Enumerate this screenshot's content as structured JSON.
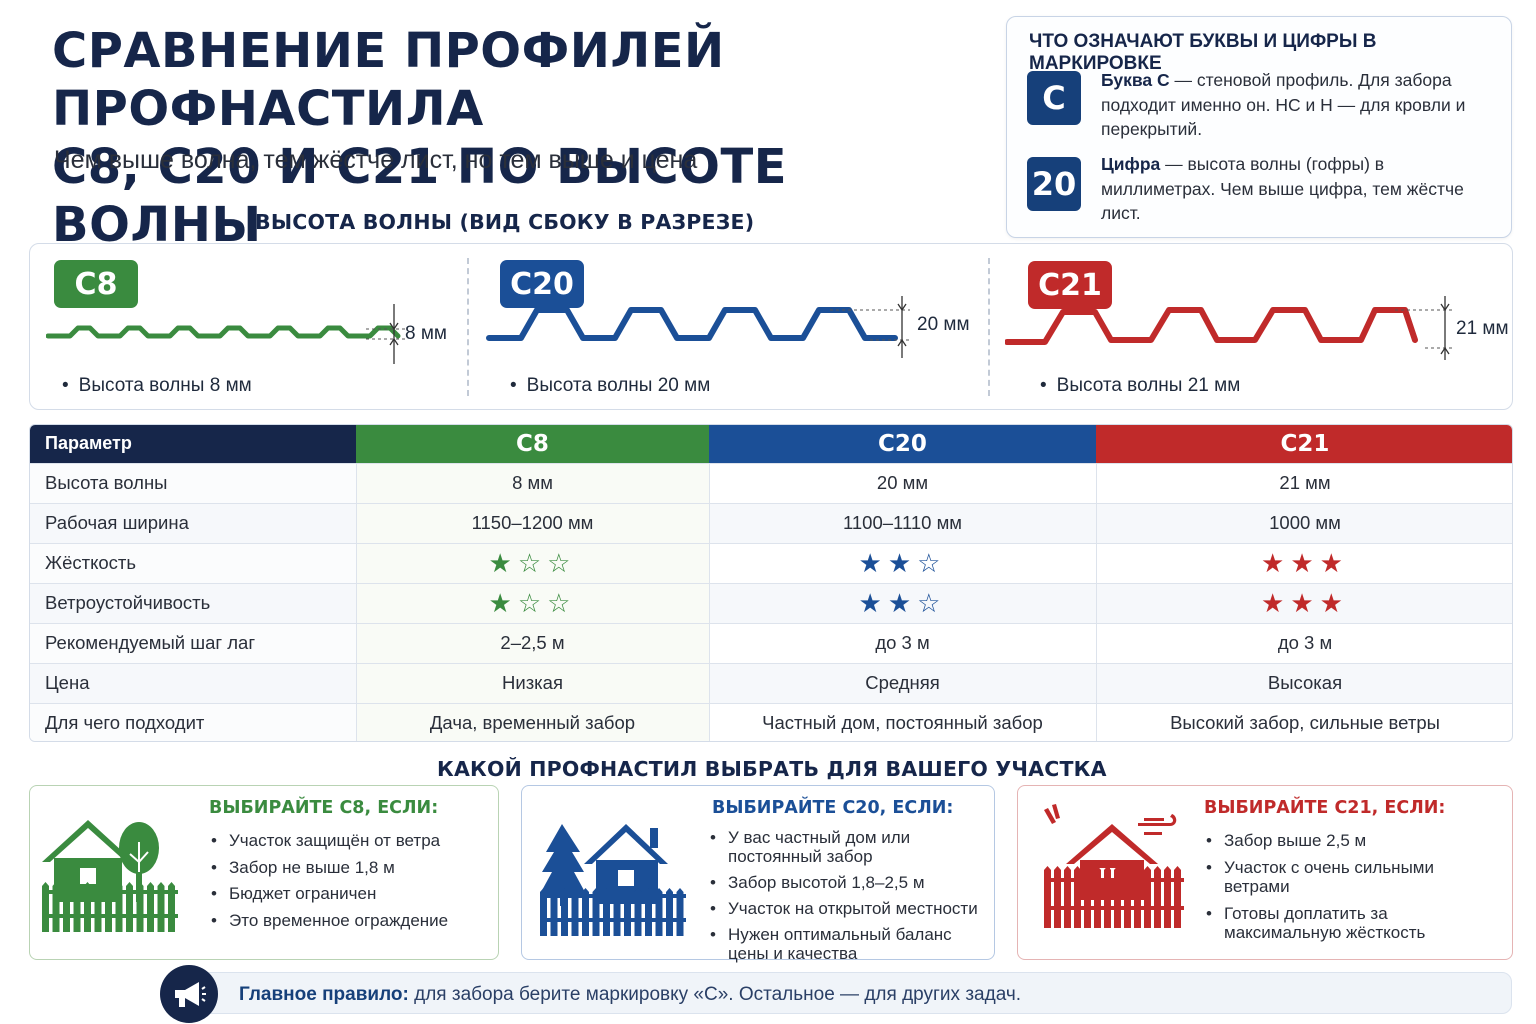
{
  "header": {
    "title_line1": "СРАВНЕНИЕ ПРОФИЛЕЙ ПРОФНАСТИЛА",
    "title_line2": "С8, С20 И С21 ПО ВЫСОТЕ ВОЛНЫ",
    "subtitle": "Чем выше волна, тем жёстче лист, но тем выше и цена"
  },
  "legend": {
    "title": "ЧТО ОЗНАЧАЮТ БУКВЫ И ЦИФРЫ В МАРКИРОВКЕ",
    "items": [
      {
        "badge": "С",
        "bold": "Буква С",
        "text": " — стеновой профиль. Для забора подходит именно он. НС и Н — для кровли и перекрытий."
      },
      {
        "badge": "20",
        "bold": "Цифра",
        "text": " — высота волны (гофры) в миллиметрах. Чем выше цифра, тем жёстче лист."
      }
    ]
  },
  "waves": {
    "heading": "ВЫСОТА ВОЛНЫ (ВИД СБОКУ В РАЗРЕЗЕ)",
    "profiles": [
      {
        "name": "С8",
        "height_label": "8 мм",
        "caption": "Высота волны 8 мм",
        "color": "#3a8b3f"
      },
      {
        "name": "С20",
        "height_label": "20 мм",
        "caption": "Высота волны 20 мм",
        "color": "#1b4f97"
      },
      {
        "name": "С21",
        "height_label": "21 мм",
        "caption": "Высота волны 21 мм",
        "color": "#c02a2a"
      }
    ]
  },
  "table": {
    "headers": [
      "Параметр",
      "С8",
      "С20",
      "С21"
    ],
    "rows": [
      {
        "param": "Высота волны",
        "c8": "8 мм",
        "c20": "20 мм",
        "c21": "21 мм"
      },
      {
        "param": "Рабочая ширина",
        "c8": "1150–1200 мм",
        "c20": "1100–1110 мм",
        "c21": "1000 мм"
      },
      {
        "param": "Жёсткость",
        "c8": "★☆☆",
        "c20": "★★☆",
        "c21": "★★★"
      },
      {
        "param": "Ветроустойчивость",
        "c8": "★☆☆",
        "c20": "★★☆",
        "c21": "★★★"
      },
      {
        "param": "Рекомендуемый шаг лаг",
        "c8": "2–2,5 м",
        "c20": "до 3 м",
        "c21": "до 3 м"
      },
      {
        "param": "Цена",
        "c8": "Низкая",
        "c20": "Средняя",
        "c21": "Высокая"
      },
      {
        "param": "Для чего подходит",
        "c8": "Дача, временный забор",
        "c20": "Частный дом, постоянный забор",
        "c21": "Высокий забор, сильные ветры"
      }
    ],
    "ratings": {
      "stiffness": {
        "c8": 1,
        "c20": 2,
        "c21": 3,
        "max": 3
      },
      "wind_resistance": {
        "c8": 1,
        "c20": 2,
        "c21": 3,
        "max": 3
      }
    }
  },
  "choose": {
    "heading": "КАКОЙ ПРОФНАСТИЛ ВЫБРАТЬ ДЛЯ ВАШЕГО УЧАСТКА",
    "cards": [
      {
        "title": "ВЫБИРАЙТЕ С8, ЕСЛИ:",
        "color": "#3a8b3f",
        "icon": "house-tree-fence-icon",
        "items": [
          "Участок защищён от ветра",
          "Забор не выше 1,8 м",
          "Бюджет ограничен",
          "Это временное ограждение"
        ]
      },
      {
        "title": "ВЫБИРАЙТЕ С20, ЕСЛИ:",
        "color": "#1b4f97",
        "icon": "house-spruce-fence-icon",
        "items": [
          "У вас частный дом или постоянный забор",
          "Забор высотой 1,8–2,5 м",
          "Участок на открытой местности",
          "Нужен оптимальный баланс цены и качества"
        ]
      },
      {
        "title": "ВЫБИРАЙТЕ С21, ЕСЛИ:",
        "color": "#c02a2a",
        "icon": "house-wind-fence-icon",
        "items": [
          "Забор выше 2,5 м",
          "Участок с очень сильными ветрами",
          "Готовы доплатить за максимальную жёсткость"
        ]
      }
    ]
  },
  "rule": {
    "icon": "megaphone-icon",
    "bold": "Главное правило:",
    "text": " для забора берите маркировку «С». Остальное — для других задач."
  }
}
